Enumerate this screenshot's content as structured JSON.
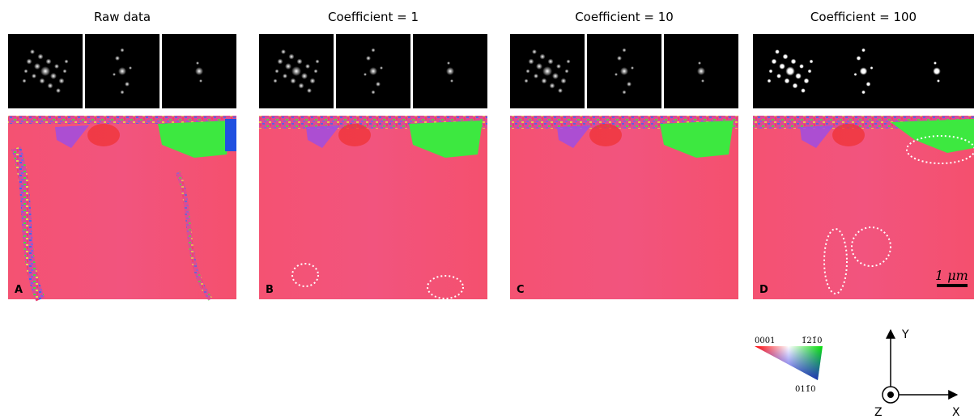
{
  "panels": [
    {
      "title": "Raw data",
      "label": "A"
    },
    {
      "title": "Coefficient = 1",
      "label": "B"
    },
    {
      "title": "Coefficient = 10",
      "label": "C"
    },
    {
      "title": "Coefficient = 100",
      "label": "D"
    }
  ],
  "scale_bar": "1 μm",
  "ipf_key": {
    "top_left": "0001",
    "top_right": "1̄21̄0",
    "bottom": "011̄0"
  },
  "axes": {
    "y": "Y",
    "z": "Z",
    "x": "X"
  }
}
